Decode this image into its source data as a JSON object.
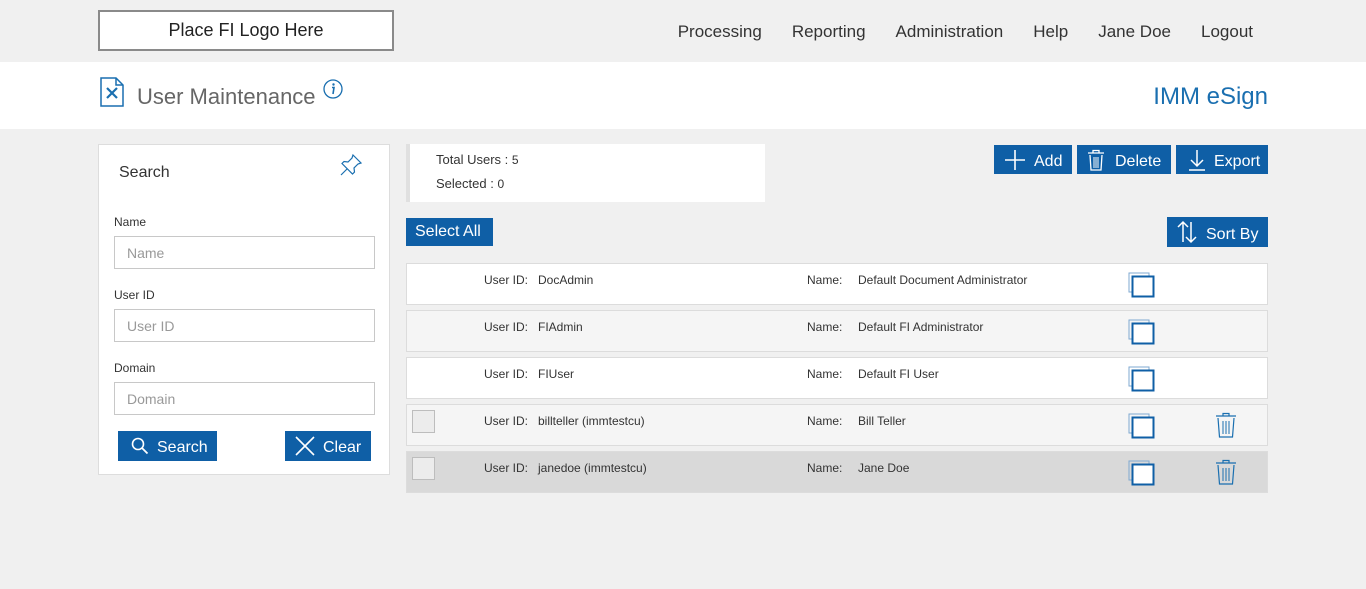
{
  "header": {
    "logo_text": "Place FI Logo Here",
    "nav": [
      "Processing",
      "Reporting",
      "Administration",
      "Help",
      "Jane Doe",
      "Logout"
    ]
  },
  "titlebar": {
    "page_title": "User Maintenance",
    "app_name": "IMM eSign"
  },
  "search_panel": {
    "title": "Search",
    "fields": [
      {
        "label": "Name",
        "placeholder": "Name",
        "value": ""
      },
      {
        "label": "User ID",
        "placeholder": "User ID",
        "value": ""
      },
      {
        "label": "Domain",
        "placeholder": "Domain",
        "value": ""
      }
    ],
    "search_label": "Search",
    "clear_label": "Clear"
  },
  "summary": {
    "total_label": "Total Users :",
    "total_value": "5",
    "selected_label": "Selected :",
    "selected_value": "0"
  },
  "toolbar": {
    "add_label": "Add",
    "delete_label": "Delete",
    "export_label": "Export",
    "select_all_label": "Select All",
    "sort_label": "Sort By"
  },
  "users": [
    {
      "user_id_label": "User ID:",
      "user_id": "DocAdmin",
      "name_label": "Name:",
      "name": "Default Document Administrator",
      "selectable": false,
      "deletable": false,
      "highlighted": false
    },
    {
      "user_id_label": "User ID:",
      "user_id": "FIAdmin",
      "name_label": "Name:",
      "name": "Default FI Administrator",
      "selectable": false,
      "deletable": false,
      "highlighted": false
    },
    {
      "user_id_label": "User ID:",
      "user_id": "FIUser",
      "name_label": "Name:",
      "name": "Default FI User",
      "selectable": false,
      "deletable": false,
      "highlighted": false
    },
    {
      "user_id_label": "User ID:",
      "user_id": "billteller (immtestcu)",
      "name_label": "Name:",
      "name": "Bill Teller",
      "selectable": true,
      "deletable": true,
      "highlighted": false
    },
    {
      "user_id_label": "User ID:",
      "user_id": "janedoe (immtestcu)",
      "name_label": "Name:",
      "name": "Jane Doe",
      "selectable": true,
      "deletable": true,
      "highlighted": true
    }
  ],
  "colors": {
    "accent": "#0f5fa6",
    "link": "#1a6fb0",
    "background": "#f0f0f0",
    "row_alt": "#f5f5f5",
    "row_highlight": "#d9d9d9"
  }
}
